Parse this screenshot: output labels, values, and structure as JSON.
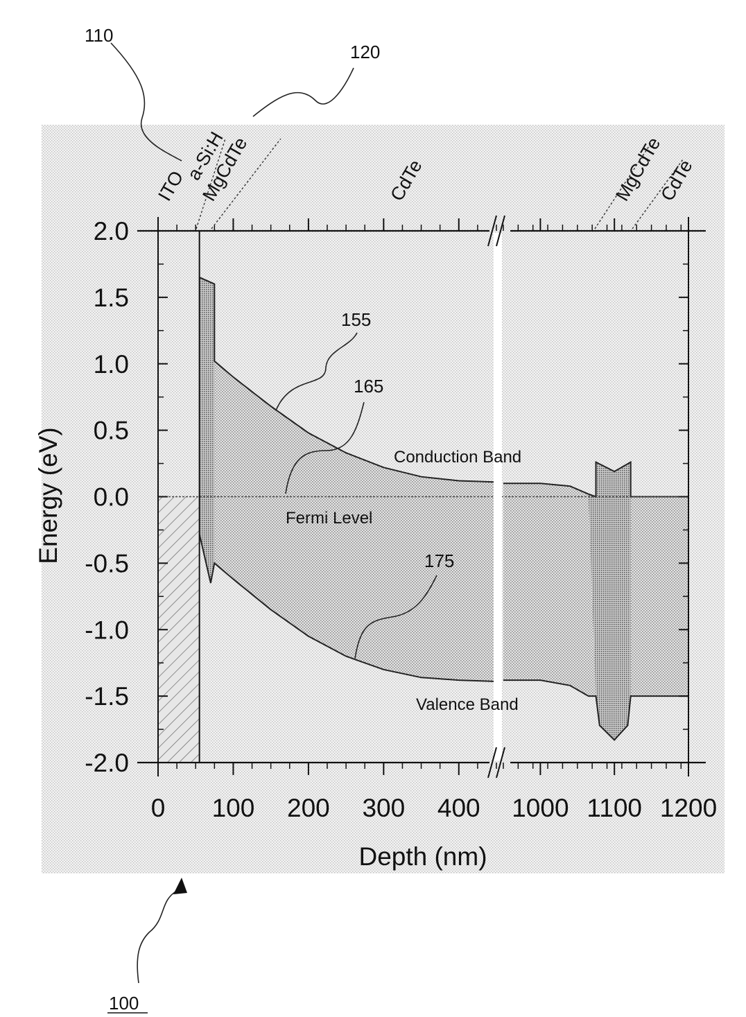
{
  "chart_data": {
    "type": "line",
    "xlabel": "Depth (nm)",
    "ylabel": "Energy (eV)",
    "ylim": [
      -2.0,
      2.0
    ],
    "x_tick_labels": [
      "0",
      "100",
      "200",
      "300",
      "400",
      "1000",
      "1100",
      "1200"
    ],
    "y_tick_labels": [
      "2.0",
      "1.5",
      "1.0",
      "0.5",
      "0.0",
      "-0.5",
      "-1.0",
      "-1.5",
      "-2.0"
    ],
    "y_ticks": [
      2.0,
      1.5,
      1.0,
      0.5,
      0.0,
      -0.5,
      -1.0,
      -1.5,
      -2.0
    ],
    "x_break": "axis break between 450 and 950 nm",
    "x_segments": [
      {
        "data_range": [
          0,
          450
        ],
        "ticks": [
          0,
          100,
          200,
          300,
          400
        ]
      },
      {
        "data_range": [
          950,
          1200
        ],
        "ticks": [
          1000,
          1100,
          1200
        ]
      }
    ],
    "layer_labels": [
      "ITO",
      "a-Si:H",
      "MgCdTe",
      "CdTe",
      "MgCdTe",
      "CdTe"
    ],
    "series": [
      {
        "name": "Conduction Band",
        "points": [
          [
            55,
            1.65
          ],
          [
            75,
            1.6
          ],
          [
            75,
            1.02
          ],
          [
            100,
            0.9
          ],
          [
            150,
            0.68
          ],
          [
            200,
            0.48
          ],
          [
            250,
            0.33
          ],
          [
            300,
            0.22
          ],
          [
            350,
            0.15
          ],
          [
            400,
            0.12
          ],
          [
            450,
            0.11
          ],
          [
            950,
            0.1
          ],
          [
            1000,
            0.1
          ],
          [
            1040,
            0.08
          ],
          [
            1065,
            0.02
          ],
          [
            1075,
            0.0
          ],
          [
            1075,
            0.26
          ],
          [
            1100,
            0.19
          ],
          [
            1122,
            0.26
          ],
          [
            1122,
            0.0
          ],
          [
            1200,
            0.0
          ]
        ]
      },
      {
        "name": "Fermi Level",
        "points": [
          [
            0,
            0.0
          ],
          [
            1200,
            0.0
          ]
        ]
      },
      {
        "name": "Valence Band",
        "points": [
          [
            55,
            -0.28
          ],
          [
            70,
            -0.65
          ],
          [
            75,
            -0.5
          ],
          [
            100,
            -0.62
          ],
          [
            150,
            -0.85
          ],
          [
            200,
            -1.05
          ],
          [
            250,
            -1.2
          ],
          [
            300,
            -1.3
          ],
          [
            350,
            -1.36
          ],
          [
            400,
            -1.38
          ],
          [
            450,
            -1.39
          ],
          [
            950,
            -1.38
          ],
          [
            1000,
            -1.38
          ],
          [
            1040,
            -1.42
          ],
          [
            1065,
            -1.5
          ],
          [
            1075,
            -1.5
          ],
          [
            1080,
            -1.72
          ],
          [
            1100,
            -1.83
          ],
          [
            1118,
            -1.72
          ],
          [
            1122,
            -1.5
          ],
          [
            1200,
            -1.5
          ]
        ]
      }
    ],
    "annotations": [
      "155",
      "165",
      "175",
      "Conduction Band",
      "Fermi Level",
      "Valence Band"
    ]
  },
  "reference_numerals": [
    "110",
    "120",
    "100"
  ]
}
